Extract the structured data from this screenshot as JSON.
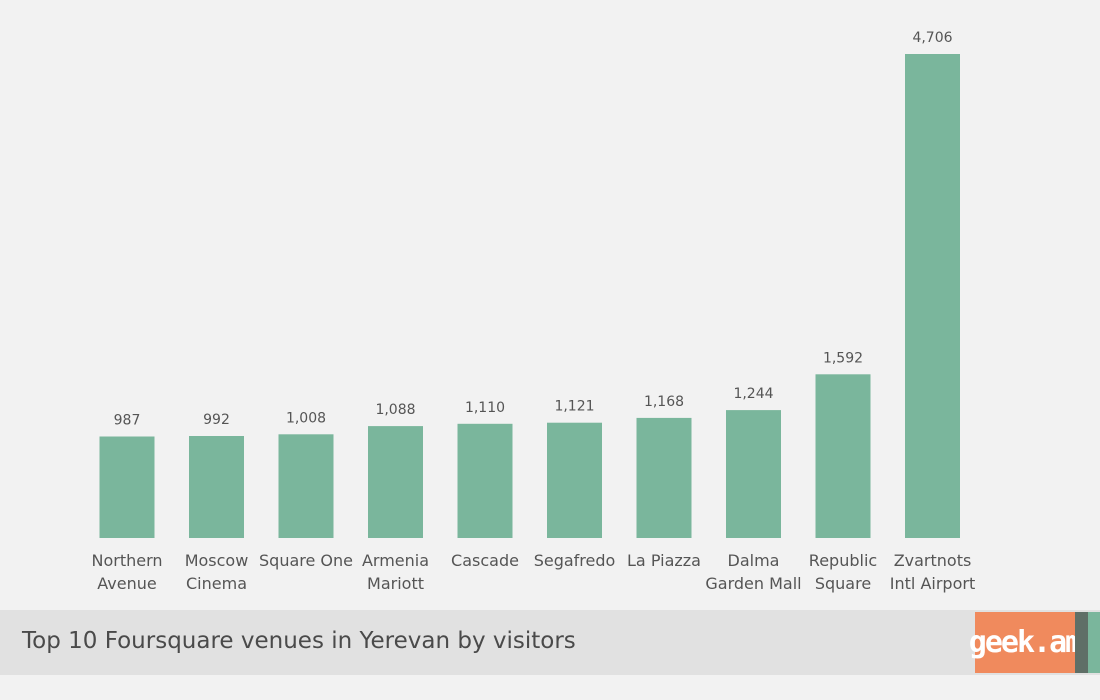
{
  "chart_data": {
    "type": "bar",
    "title": "Top 10 Foursquare venues in Yerevan by visitors",
    "categories": [
      [
        "Northern",
        "Avenue"
      ],
      [
        "Moscow",
        "Cinema"
      ],
      [
        "Square One"
      ],
      [
        "Armenia",
        "Mariott"
      ],
      [
        "Cascade"
      ],
      [
        "Segafredo"
      ],
      [
        "La Piazza"
      ],
      [
        "Dalma",
        "Garden Mall"
      ],
      [
        "Republic",
        "Square"
      ],
      [
        "Zvartnots",
        "Intl Airport"
      ]
    ],
    "values": [
      987,
      992,
      1008,
      1088,
      1110,
      1121,
      1168,
      1244,
      1592,
      4706
    ],
    "value_labels": [
      "987",
      "992",
      "1,008",
      "1,088",
      "1,110",
      "1,121",
      "1,168",
      "1,244",
      "1,592",
      "4,706"
    ],
    "ylim": [
      0,
      4706
    ],
    "grid": false,
    "bar_color": "#7ab69c"
  },
  "footer": {
    "title": "Top 10 Foursquare venues in Yerevan by visitors",
    "logo_text": "geek.am",
    "logo_color": "#f08a5d"
  }
}
